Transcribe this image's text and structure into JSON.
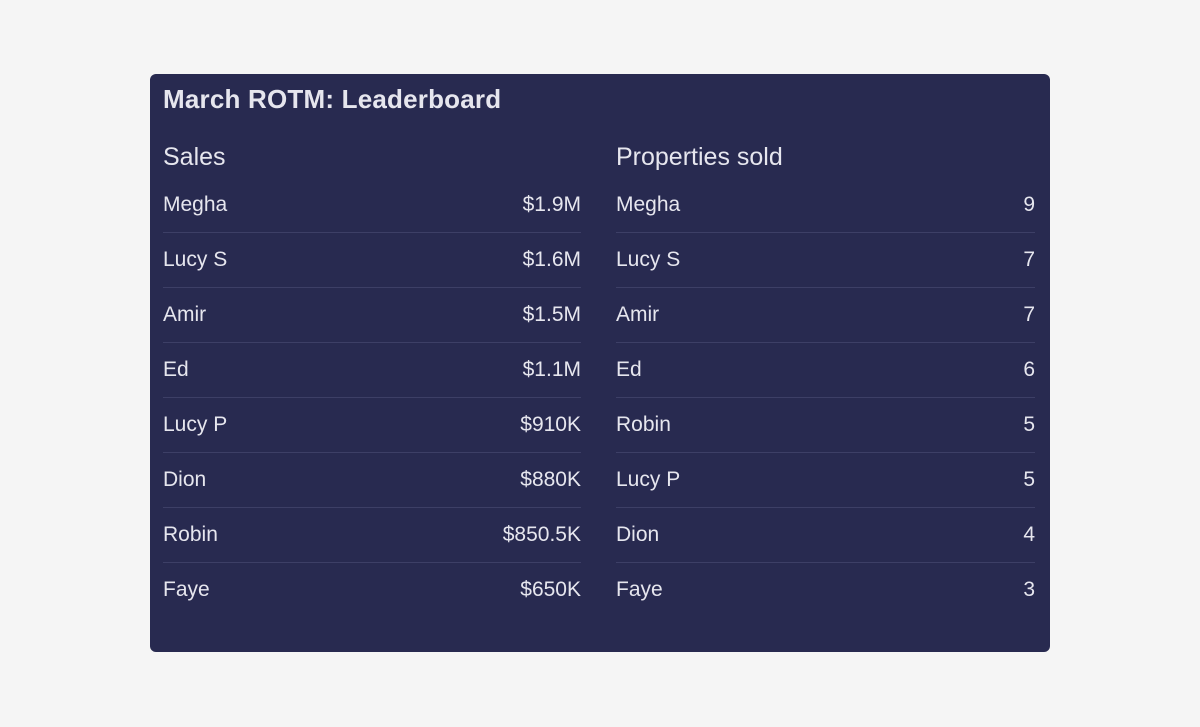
{
  "title": "March ROTM: Leaderboard",
  "sales": {
    "heading": "Sales",
    "rows": [
      {
        "name": "Megha",
        "value": "$1.9M"
      },
      {
        "name": "Lucy S",
        "value": "$1.6M"
      },
      {
        "name": "Amir",
        "value": "$1.5M"
      },
      {
        "name": "Ed",
        "value": "$1.1M"
      },
      {
        "name": "Lucy P",
        "value": "$910K"
      },
      {
        "name": "Dion",
        "value": "$880K"
      },
      {
        "name": "Robin",
        "value": "$850.5K"
      },
      {
        "name": "Faye",
        "value": "$650K"
      }
    ]
  },
  "properties": {
    "heading": "Properties sold",
    "rows": [
      {
        "name": "Megha",
        "value": "9"
      },
      {
        "name": "Lucy S",
        "value": "7"
      },
      {
        "name": "Amir",
        "value": "7"
      },
      {
        "name": "Ed",
        "value": "6"
      },
      {
        "name": "Robin",
        "value": "5"
      },
      {
        "name": "Lucy P",
        "value": "5"
      },
      {
        "name": "Dion",
        "value": "4"
      },
      {
        "name": "Faye",
        "value": "3"
      }
    ]
  }
}
